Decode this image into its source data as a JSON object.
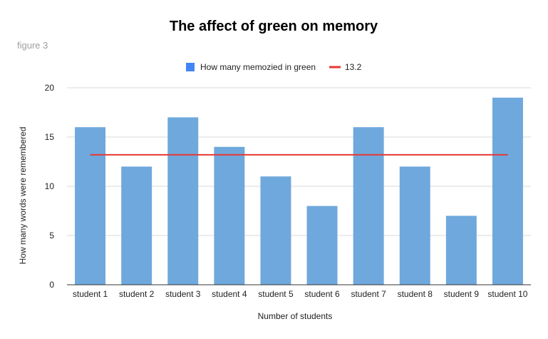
{
  "chart_data": {
    "type": "bar",
    "title": "The affect of green on memory",
    "subtitle": "figure 3",
    "xlabel": "Number of students",
    "ylabel": "How many words were remembered",
    "categories": [
      "student 1",
      "student 2",
      "student 3",
      "student 4",
      "student 5",
      "student 6",
      "student 7",
      "student 8",
      "student 9",
      "student 10"
    ],
    "series": [
      {
        "name": "How many memozied in green",
        "values": [
          16,
          12,
          17,
          14,
          11,
          8,
          16,
          12,
          7,
          19
        ],
        "color": "#6fa8dc",
        "legend_color": "#4285f4"
      }
    ],
    "reference_line": {
      "name": "13.2",
      "value": 13.2,
      "color": "#e53935"
    },
    "ylim": [
      0,
      20
    ],
    "yticks": [
      "0",
      "5",
      "10",
      "15",
      "20"
    ],
    "grid": true,
    "legend_position": "top"
  }
}
